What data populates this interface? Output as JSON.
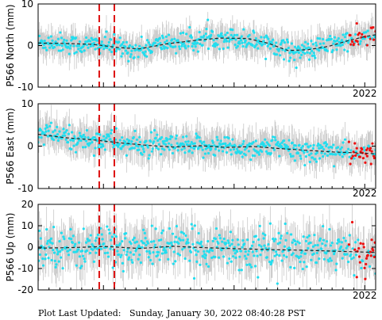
{
  "footer": {
    "label": "Plot Last Updated:",
    "timestamp": "Sunday, January 30, 2022 08:40:28 PST"
  },
  "chart_data": [
    {
      "type": "scatter",
      "title": "",
      "xlabel": "",
      "ylabel": "P566 North (mm)",
      "ylim": [
        -10,
        10
      ],
      "yticks": [
        -10,
        0,
        10
      ],
      "xtick_labels": [
        "2022"
      ],
      "grid": false,
      "x_range": [
        "2019-07",
        "2022-02"
      ],
      "event_lines_x": [
        "2019-12-20",
        "2020-02-01"
      ],
      "trend_points": [
        [
          0,
          0.6
        ],
        [
          0.08,
          0.5
        ],
        [
          0.16,
          0.3
        ],
        [
          0.24,
          -0.5
        ],
        [
          0.3,
          -0.8
        ],
        [
          0.38,
          0.4
        ],
        [
          0.46,
          1.2
        ],
        [
          0.54,
          1.8
        ],
        [
          0.62,
          1.7
        ],
        [
          0.68,
          0.6
        ],
        [
          0.74,
          -1.2
        ],
        [
          0.8,
          -1.0
        ],
        [
          0.86,
          -0.2
        ],
        [
          0.92,
          1.2
        ],
        [
          0.97,
          2.2
        ],
        [
          1.0,
          2.6
        ]
      ],
      "scatter": 1.2,
      "error_bar": 3.2,
      "red_points_from": 0.92
    },
    {
      "type": "scatter",
      "title": "",
      "xlabel": "",
      "ylabel": "P566 East (mm)",
      "ylim": [
        -10,
        10
      ],
      "yticks": [
        -10,
        0,
        10
      ],
      "xtick_labels": [
        "2022"
      ],
      "grid": false,
      "x_range": [
        "2019-07",
        "2022-02"
      ],
      "event_lines_x": [
        "2019-12-20",
        "2020-02-01"
      ],
      "trend_points": [
        [
          0,
          2.8
        ],
        [
          0.08,
          2.0
        ],
        [
          0.16,
          1.5
        ],
        [
          0.24,
          0.8
        ],
        [
          0.32,
          0.2
        ],
        [
          0.4,
          -0.2
        ],
        [
          0.48,
          0.1
        ],
        [
          0.56,
          -0.3
        ],
        [
          0.64,
          -0.1
        ],
        [
          0.72,
          -0.6
        ],
        [
          0.8,
          -1.0
        ],
        [
          0.88,
          -1.4
        ],
        [
          0.95,
          -1.6
        ],
        [
          1.0,
          -1.8
        ]
      ],
      "scatter": 1.3,
      "error_bar": 3.6,
      "red_points_from": 0.92
    },
    {
      "type": "scatter",
      "title": "",
      "xlabel": "",
      "ylabel": "P566 Up (mm)",
      "ylim": [
        -20,
        20
      ],
      "yticks": [
        -20,
        -10,
        0,
        10,
        20
      ],
      "xtick_labels": [
        "2022"
      ],
      "grid": false,
      "x_range": [
        "2019-07",
        "2022-02"
      ],
      "event_lines_x": [
        "2019-12-20",
        "2020-02-01"
      ],
      "trend_points": [
        [
          0,
          -0.5
        ],
        [
          0.1,
          -0.2
        ],
        [
          0.2,
          0.3
        ],
        [
          0.3,
          -0.6
        ],
        [
          0.4,
          0.4
        ],
        [
          0.5,
          -0.3
        ],
        [
          0.6,
          -0.8
        ],
        [
          0.7,
          -1.2
        ],
        [
          0.8,
          -1.5
        ],
        [
          0.9,
          -2.0
        ],
        [
          1.0,
          -2.5
        ]
      ],
      "scatter": 4.5,
      "error_bar": 9,
      "red_points_from": 0.92
    }
  ],
  "colors": {
    "points": "#22ddee",
    "points_recent": "#ee1111",
    "error_bars": "#c8c8c8",
    "trend": "#222222",
    "event_lines": "#dd1111",
    "axes": "#000000"
  }
}
